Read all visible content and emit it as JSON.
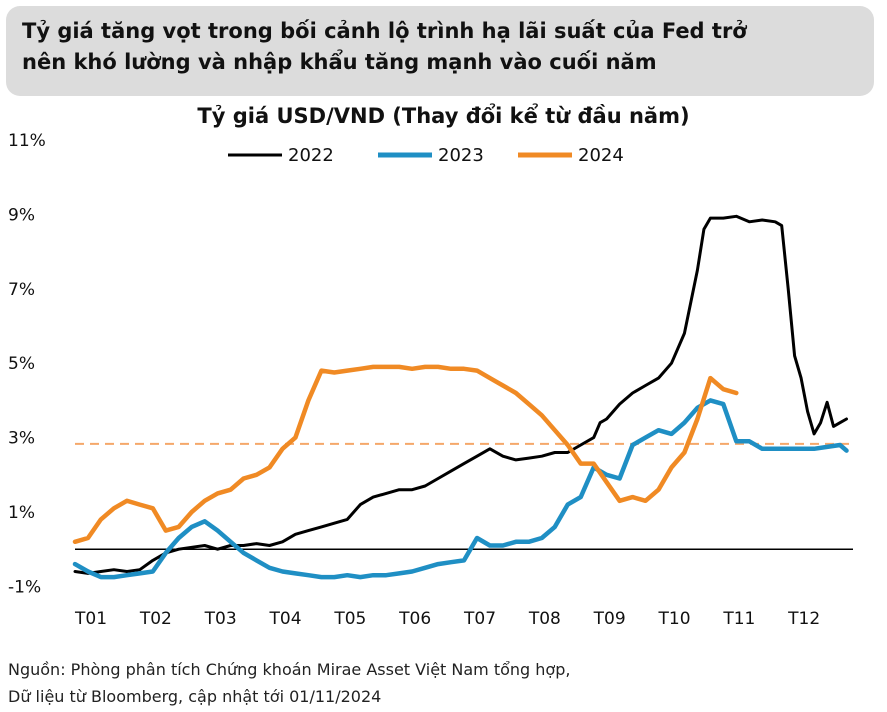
{
  "headline": {
    "line1": "Tỷ giá tăng vọt trong bối cảnh lộ trình hạ lãi suất của Fed trở",
    "line2": "nên khó lường và nhập khẩu tăng mạnh vào cuối năm"
  },
  "chart_data": {
    "type": "line",
    "title": "Tỷ giá USD/VND (Thay đổi kể từ đầu năm)",
    "xlabel": "",
    "ylabel": "",
    "x_unit": "month index (1 = T01, 13 = end of T12)",
    "x_ticks": [
      "T01",
      "T02",
      "T03",
      "T04",
      "T05",
      "T06",
      "T07",
      "T08",
      "T09",
      "T10",
      "T11",
      "T12"
    ],
    "y_ticks": [
      "11%",
      "9%",
      "7%",
      "5%",
      "3%",
      "1%",
      "-1%"
    ],
    "y_tick_values": [
      11,
      9,
      7,
      5,
      3,
      1,
      -1
    ],
    "ylim": [
      -1.1,
      11
    ],
    "grid": false,
    "legend_position": "top",
    "reference_line": {
      "value": 2.83,
      "color": "#f5a86a",
      "style": "dashed"
    },
    "series": [
      {
        "name": "2022",
        "color": "#000000",
        "x": [
          1.0,
          1.2,
          1.4,
          1.6,
          1.8,
          2.0,
          2.2,
          2.4,
          2.6,
          2.8,
          3.0,
          3.2,
          3.4,
          3.6,
          3.8,
          4.0,
          4.2,
          4.4,
          4.6,
          4.8,
          5.0,
          5.2,
          5.4,
          5.6,
          5.8,
          6.0,
          6.2,
          6.4,
          6.6,
          6.8,
          7.0,
          7.2,
          7.4,
          7.6,
          7.8,
          8.0,
          8.2,
          8.4,
          8.6,
          8.8,
          9.0,
          9.1,
          9.2,
          9.4,
          9.6,
          9.8,
          10.0,
          10.2,
          10.4,
          10.6,
          10.7,
          10.8,
          11.0,
          11.2,
          11.4,
          11.6,
          11.8,
          11.9,
          12.0,
          12.1,
          12.2,
          12.3,
          12.4,
          12.5,
          12.6,
          12.7,
          12.8,
          12.9
        ],
        "values": [
          -0.6,
          -0.65,
          -0.6,
          -0.55,
          -0.6,
          -0.55,
          -0.3,
          -0.1,
          0.0,
          0.05,
          0.1,
          0.0,
          0.1,
          0.1,
          0.15,
          0.1,
          0.2,
          0.4,
          0.5,
          0.6,
          0.7,
          0.8,
          1.2,
          1.4,
          1.5,
          1.6,
          1.6,
          1.7,
          1.9,
          2.1,
          2.3,
          2.5,
          2.7,
          2.5,
          2.4,
          2.45,
          2.5,
          2.6,
          2.6,
          2.8,
          3.0,
          3.4,
          3.5,
          3.9,
          4.2,
          4.4,
          4.6,
          5.0,
          5.8,
          7.5,
          8.6,
          8.9,
          8.9,
          8.95,
          8.8,
          8.85,
          8.8,
          8.7,
          7.0,
          5.2,
          4.6,
          3.7,
          3.1,
          3.4,
          3.95,
          3.3,
          3.4,
          3.5
        ]
      },
      {
        "name": "2023",
        "color": "#1f8fc4",
        "x": [
          1.0,
          1.2,
          1.4,
          1.6,
          1.8,
          2.0,
          2.2,
          2.4,
          2.6,
          2.8,
          3.0,
          3.2,
          3.4,
          3.6,
          3.8,
          4.0,
          4.2,
          4.4,
          4.6,
          4.8,
          5.0,
          5.2,
          5.4,
          5.6,
          5.8,
          6.0,
          6.2,
          6.4,
          6.6,
          6.8,
          7.0,
          7.2,
          7.4,
          7.6,
          7.8,
          8.0,
          8.2,
          8.4,
          8.6,
          8.8,
          9.0,
          9.2,
          9.4,
          9.6,
          9.8,
          10.0,
          10.2,
          10.4,
          10.6,
          10.8,
          11.0,
          11.2,
          11.4,
          11.6,
          11.8,
          12.0,
          12.2,
          12.4,
          12.6,
          12.8,
          12.9
        ],
        "values": [
          -0.4,
          -0.6,
          -0.75,
          -0.75,
          -0.7,
          -0.65,
          -0.6,
          -0.1,
          0.3,
          0.6,
          0.75,
          0.5,
          0.2,
          -0.1,
          -0.3,
          -0.5,
          -0.6,
          -0.65,
          -0.7,
          -0.75,
          -0.75,
          -0.7,
          -0.75,
          -0.7,
          -0.7,
          -0.65,
          -0.6,
          -0.5,
          -0.4,
          -0.35,
          -0.3,
          0.3,
          0.1,
          0.1,
          0.2,
          0.2,
          0.3,
          0.6,
          1.2,
          1.4,
          2.2,
          2.0,
          1.9,
          2.8,
          3.0,
          3.2,
          3.1,
          3.4,
          3.8,
          4.0,
          3.9,
          2.9,
          2.9,
          2.7,
          2.7,
          2.7,
          2.7,
          2.7,
          2.75,
          2.8,
          2.65
        ]
      },
      {
        "name": "2024",
        "color": "#f08a24",
        "x": [
          1.0,
          1.2,
          1.4,
          1.6,
          1.8,
          2.0,
          2.2,
          2.4,
          2.6,
          2.8,
          3.0,
          3.2,
          3.4,
          3.6,
          3.8,
          4.0,
          4.2,
          4.4,
          4.6,
          4.8,
          5.0,
          5.2,
          5.4,
          5.6,
          5.8,
          6.0,
          6.2,
          6.4,
          6.6,
          6.8,
          7.0,
          7.2,
          7.4,
          7.6,
          7.8,
          8.0,
          8.2,
          8.4,
          8.6,
          8.8,
          9.0,
          9.2,
          9.4,
          9.6,
          9.8,
          10.0,
          10.2,
          10.4,
          10.6,
          10.8,
          11.0,
          11.2
        ],
        "values": [
          0.2,
          0.3,
          0.8,
          1.1,
          1.3,
          1.2,
          1.1,
          0.5,
          0.6,
          1.0,
          1.3,
          1.5,
          1.6,
          1.9,
          2.0,
          2.2,
          2.7,
          3.0,
          4.0,
          4.8,
          4.75,
          4.8,
          4.85,
          4.9,
          4.9,
          4.9,
          4.85,
          4.9,
          4.9,
          4.85,
          4.85,
          4.8,
          4.6,
          4.4,
          4.2,
          3.9,
          3.6,
          3.2,
          2.8,
          2.3,
          2.3,
          1.8,
          1.3,
          1.4,
          1.3,
          1.6,
          2.2,
          2.6,
          3.5,
          4.6,
          4.3,
          4.2
        ]
      }
    ]
  },
  "source": {
    "line1": "Nguồn: Phòng phân tích Chứng khoán Mirae Asset Việt Nam tổng hợp,",
    "line2": "Dữ liệu từ Bloomberg, cập nhật tới 01/11/2024"
  }
}
